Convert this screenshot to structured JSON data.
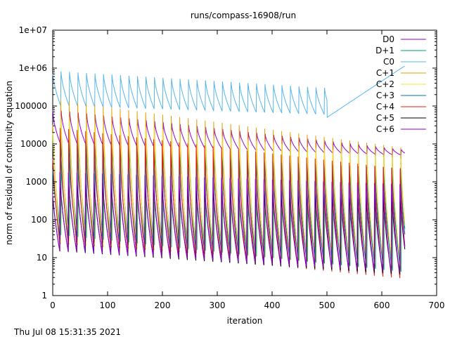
{
  "timestamp": "Thu Jul 08 15:31:35 2021",
  "chart_data": {
    "type": "line",
    "title": "runs/compass-16908/run",
    "xlabel": "iteration",
    "ylabel": "norm of residual of continuity equation",
    "xlim": [
      0,
      700
    ],
    "ylim": [
      1,
      10000000
    ],
    "y_scale": "log",
    "x_ticks": [
      "0",
      "100",
      "200",
      "300",
      "400",
      "500",
      "600",
      "700"
    ],
    "y_ticks": [
      "1",
      "10",
      "100",
      "1000",
      "10000",
      "100000",
      "1e+06",
      "1e+07"
    ],
    "grid": false,
    "legend_position": "top-right",
    "cycle_period": 15.5,
    "total_iterations": 642,
    "series": [
      {
        "name": "D0",
        "color": "#9400d3",
        "start_peak": 80000,
        "end_peak": 7000,
        "start_min": 9000,
        "end_min": 5000,
        "peak_frac": 0.0
      },
      {
        "name": "D+1",
        "color": "#009e73",
        "start_peak": 30000,
        "end_peak": 4000,
        "start_min": 40,
        "end_min": 4,
        "peak_frac": 0.0
      },
      {
        "name": "C0",
        "color": "#56b4e9",
        "start_peak": 1000000,
        "end_peak": 250000,
        "start_min": 100000,
        "end_min": 50000,
        "tail_value": 1100000,
        "peak_frac": 0.0
      },
      {
        "name": "C+1",
        "color": "#e69f00",
        "start_peak": 200000,
        "end_peak": 10000,
        "start_min": 20,
        "end_min": 5,
        "peak_frac": 0.0
      },
      {
        "name": "C+2",
        "color": "#f0e442",
        "start_peak": 150000,
        "end_peak": 9000,
        "start_min": 25,
        "end_min": 6,
        "peak_frac": 0.0
      },
      {
        "name": "C+3",
        "color": "#0072b2",
        "start_peak": 10000,
        "end_peak": 4000,
        "start_min": 30,
        "end_min": 5,
        "peak_frac": 0.0
      },
      {
        "name": "C+4",
        "color": "#e51e10",
        "start_peak": 40000,
        "end_peak": 3000,
        "start_min": 20,
        "end_min": 2.5,
        "peak_frac": 0.0
      },
      {
        "name": "C+5",
        "color": "#000000",
        "start_peak": 2000,
        "end_peak": 900,
        "start_min": 15,
        "end_min": 3.5,
        "peak_frac": 0.0
      },
      {
        "name": "C+6",
        "color": "#9400d3",
        "start_peak": 3000,
        "end_peak": 1500,
        "start_min": 15,
        "end_min": 4,
        "peak_frac": 0.0
      }
    ]
  }
}
